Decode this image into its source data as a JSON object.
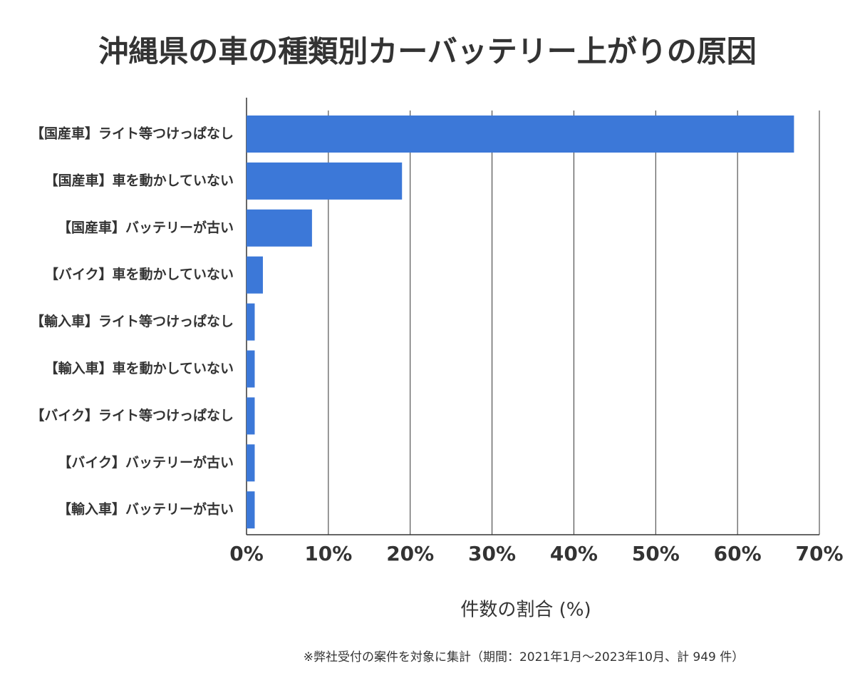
{
  "chart_data": {
    "type": "barh",
    "title": "沖縄県の車の種類別カーバッテリー上がりの原因",
    "categories": [
      "【国産車】ライト等つけっぱなし",
      "【国産車】車を動かしていない",
      "【国産車】バッテリーが古い",
      "【バイク】車を動かしていない",
      "【輸入車】ライト等つけっぱなし",
      "【輸入車】車を動かしていない",
      "【バイク】ライト等つけっぱなし",
      "【バイク】バッテリーが古い",
      "【輸入車】バッテリーが古い"
    ],
    "values": [
      66.9,
      19.0,
      8.0,
      2.0,
      1.0,
      1.0,
      1.0,
      1.0,
      1.0
    ],
    "color": "#3c78d8",
    "xlim": [
      0,
      70
    ],
    "xticks": [
      {
        "value": 0,
        "label": "0%"
      },
      {
        "value": 10,
        "label": "10%"
      },
      {
        "value": 20,
        "label": "20%"
      },
      {
        "value": 30,
        "label": "30%"
      },
      {
        "value": 40,
        "label": "40%"
      },
      {
        "value": 50,
        "label": "50%"
      },
      {
        "value": 60,
        "label": "60%"
      },
      {
        "value": 70,
        "label": "70%"
      }
    ],
    "xlabel": "件数の割合 (%)",
    "note": "※弊社受付の案件を対象に集計（期間：2021年1月～2023年10月、計 949 件）",
    "grid": true
  }
}
